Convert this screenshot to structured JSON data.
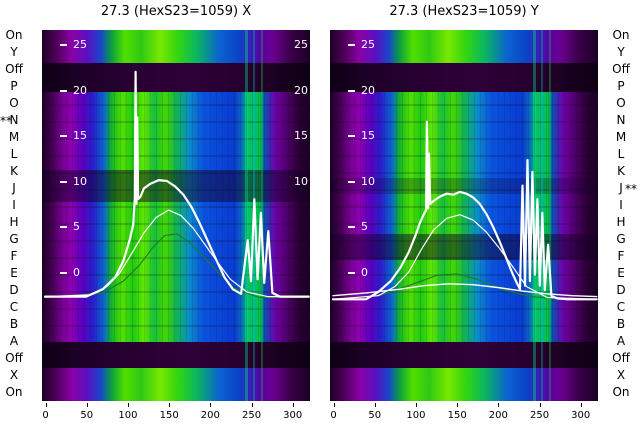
{
  "titles": {
    "left": "27.3 (HexS23=1059) X",
    "right": "27.3 (HexS23=1059) Y"
  },
  "row_labels": {
    "left": [
      "On",
      "Y",
      "Off",
      "P",
      "O",
      "N",
      "M",
      "L",
      "K",
      "J",
      "I",
      "H",
      "G",
      "F",
      "E",
      "D",
      "C",
      "B",
      "A",
      "Off",
      "X",
      "On"
    ],
    "right": [
      "On",
      "Y",
      "Off",
      "P",
      "O",
      "N",
      "M",
      "L",
      "K",
      "J",
      "I",
      "H",
      "G",
      "F",
      "E",
      "D",
      "C",
      "B",
      "A",
      "Off",
      "X",
      "On"
    ],
    "left_marker": {
      "symbol": "**",
      "row": "N"
    },
    "right_marker": {
      "symbol": "**",
      "row": "J"
    }
  },
  "y_axis": {
    "ticks": [
      "25",
      "20",
      "15",
      "10",
      "5",
      "0"
    ],
    "right_ticks_left_panel": [
      "25",
      "20",
      "15",
      "10"
    ]
  },
  "x_axis": {
    "ticks": [
      "0",
      "50",
      "100",
      "150",
      "200",
      "250",
      "300"
    ]
  },
  "colors": {
    "heat_dark": "#1c0026",
    "heat_purple": "#7a0096",
    "heat_blue": "#0a50e0",
    "heat_green": "#52e000",
    "curve_white": "#ffffff",
    "curve_green": "#1e7d1e"
  },
  "chart_data": [
    {
      "type": "heatmap+line",
      "title": "27.3 (HexS23=1059) X",
      "x_range": [
        0,
        320
      ],
      "y_range": [
        -3,
        27
      ],
      "x_ticks": [
        0,
        50,
        100,
        150,
        200,
        250,
        300
      ],
      "y_ticks": [
        25,
        20,
        15,
        10,
        5,
        0
      ],
      "heatmap_rows": [
        "On",
        "Y",
        "Off",
        "P",
        "O",
        "N",
        "M",
        "L",
        "K",
        "J",
        "I",
        "H",
        "G",
        "F",
        "E",
        "D",
        "C",
        "B",
        "A",
        "Off",
        "X",
        "On"
      ],
      "legend_position": "none",
      "grid": false,
      "series": [
        {
          "name": "fit-green",
          "color": "#1e7d1e",
          "width": 1.1,
          "x": [
            0,
            70,
            95,
            115,
            130,
            145,
            160,
            175,
            190,
            210,
            230,
            260,
            320
          ],
          "y": [
            -2.8,
            -2.3,
            -1.0,
            0.8,
            2.6,
            4.0,
            4.2,
            3.3,
            1.9,
            0.0,
            -1.8,
            -2.8,
            -2.8
          ]
        },
        {
          "name": "profile-secondary",
          "color": "#ffffff",
          "width": 1.2,
          "x": [
            0,
            55,
            75,
            90,
            105,
            120,
            135,
            150,
            165,
            180,
            195,
            210,
            225,
            245,
            270,
            320
          ],
          "y": [
            -2.7,
            -2.5,
            -1.6,
            -0.2,
            2.0,
            4.3,
            6.0,
            6.8,
            6.2,
            4.8,
            2.9,
            1.0,
            -0.8,
            -2.2,
            -2.7,
            -2.7
          ]
        },
        {
          "name": "profile-main",
          "color": "#ffffff",
          "width": 2.2,
          "x": [
            0,
            50,
            70,
            85,
            95,
            103,
            107,
            109,
            110,
            111,
            112,
            113,
            116,
            120,
            128,
            138,
            148,
            158,
            168,
            178,
            188,
            198,
            208,
            218,
            228,
            238,
            246,
            250,
            254,
            258,
            262,
            266,
            271,
            276,
            285,
            320
          ],
          "y": [
            -2.7,
            -2.7,
            -1.9,
            -0.6,
            1.2,
            3.6,
            5.2,
            8.0,
            22.0,
            7.5,
            17.0,
            8.0,
            8.3,
            9.2,
            9.7,
            10.1,
            10.0,
            9.4,
            8.5,
            7.1,
            5.3,
            3.3,
            1.3,
            -0.6,
            -1.9,
            -2.4,
            3.5,
            -1.0,
            8.0,
            -0.8,
            6.5,
            -1.2,
            4.5,
            -2.3,
            -2.7,
            -2.7
          ]
        }
      ]
    },
    {
      "type": "heatmap+line",
      "title": "27.3 (HexS23=1059) Y",
      "x_range": [
        0,
        320
      ],
      "y_range": [
        -3,
        27
      ],
      "x_ticks": [
        0,
        50,
        100,
        150,
        200,
        250,
        300
      ],
      "y_ticks": [
        25,
        20,
        15,
        10,
        5,
        0
      ],
      "heatmap_rows": [
        "On",
        "Y",
        "Off",
        "P",
        "O",
        "N",
        "M",
        "L",
        "K",
        "J",
        "I",
        "H",
        "G",
        "F",
        "E",
        "D",
        "C",
        "B",
        "A",
        "Off",
        "X",
        "On"
      ],
      "legend_position": "none",
      "grid": false,
      "series": [
        {
          "name": "fit-green",
          "color": "#1e7d1e",
          "width": 1.1,
          "x": [
            0,
            60,
            95,
            125,
            150,
            175,
            205,
            240,
            280,
            320
          ],
          "y": [
            -3.0,
            -2.5,
            -1.4,
            -0.4,
            -0.2,
            -0.8,
            -1.9,
            -2.7,
            -3.0,
            -3.0
          ]
        },
        {
          "name": "monitor-low",
          "color": "#ffffff",
          "width": 1.4,
          "x": [
            0,
            40,
            80,
            110,
            140,
            170,
            200,
            230,
            260,
            290,
            320
          ],
          "y": [
            -2.6,
            -2.3,
            -1.9,
            -1.5,
            -1.3,
            -1.4,
            -1.7,
            -2.1,
            -2.4,
            -2.6,
            -2.7
          ]
        },
        {
          "name": "profile-secondary",
          "color": "#ffffff",
          "width": 1.2,
          "x": [
            0,
            55,
            75,
            92,
            108,
            122,
            138,
            154,
            170,
            186,
            202,
            218,
            235,
            260,
            320
          ],
          "y": [
            -3.0,
            -2.6,
            -1.6,
            0.0,
            2.6,
            4.6,
            5.9,
            6.3,
            5.7,
            4.4,
            2.6,
            0.6,
            -1.6,
            -2.8,
            -3.0
          ]
        },
        {
          "name": "profile-main",
          "color": "#ffffff",
          "width": 2.2,
          "x": [
            0,
            40,
            55,
            70,
            82,
            92,
            100,
            106,
            110,
            113,
            114,
            115.5,
            116.5,
            118,
            122,
            130,
            138,
            146,
            154,
            162,
            170,
            178,
            186,
            194,
            202,
            210,
            217,
            223,
            227,
            230,
            233,
            236,
            239,
            242,
            245,
            248,
            251,
            254,
            257,
            261,
            265,
            272,
            285,
            320
          ],
          "y": [
            -3.0,
            -3.0,
            -2.2,
            -1.0,
            0.5,
            2.2,
            4.0,
            5.5,
            6.3,
            6.8,
            16.5,
            7.0,
            13.0,
            7.5,
            7.8,
            8.3,
            8.6,
            8.5,
            8.8,
            8.6,
            8.2,
            7.5,
            6.4,
            5.0,
            3.4,
            1.6,
            0.0,
            -1.2,
            -1.9,
            9.5,
            -1.5,
            12.3,
            -1.0,
            11.0,
            -0.3,
            8.0,
            -1.5,
            6.5,
            -2.0,
            3.0,
            -2.6,
            -2.9,
            -3.0,
            -3.0
          ]
        }
      ]
    }
  ]
}
